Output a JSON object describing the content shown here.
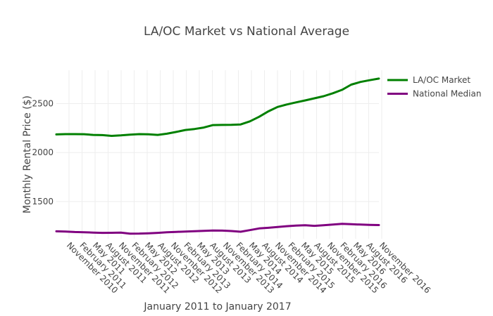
{
  "chart_data": {
    "type": "line",
    "title": "LA/OC Market vs National Average",
    "xlabel": "January 2011 to January 2017",
    "ylabel": "Monthly Rental Price ($)",
    "x_tick_labels": [
      "November 2010",
      "February 2011",
      "May 2011",
      "August 2011",
      "November 2011",
      "February 2012",
      "May 2012",
      "August 2012",
      "November 2012",
      "February 2013",
      "May 2013",
      "August 2013",
      "November 2013",
      "February 2014",
      "May 2014",
      "August 2014",
      "November 2014",
      "February 2015",
      "May 2015",
      "August 2015",
      "November 2015",
      "February 2016",
      "May 2016",
      "August 2016",
      "November 2016"
    ],
    "y_ticks": [
      1500,
      2000,
      2500
    ],
    "y_tick_labels": [
      "1500",
      "2000",
      "2500"
    ],
    "ylim": [
      1120,
      2840
    ],
    "grid": true,
    "legend_position": "top-right",
    "series": [
      {
        "name": "LA/OC Market",
        "color": "#008000",
        "values": [
          2185,
          2188,
          2188,
          2187,
          2180,
          2178,
          2170,
          2175,
          2183,
          2188,
          2186,
          2180,
          2192,
          2210,
          2230,
          2240,
          2255,
          2280,
          2282,
          2283,
          2287,
          2318,
          2365,
          2420,
          2465,
          2490,
          2512,
          2532,
          2553,
          2575,
          2605,
          2640,
          2693,
          2720,
          2738,
          2755
        ]
      },
      {
        "name": "National Median",
        "color": "#800080",
        "values": [
          1196,
          1194,
          1189,
          1187,
          1183,
          1180,
          1181,
          1183,
          1172,
          1173,
          1176,
          1180,
          1186,
          1190,
          1193,
          1197,
          1200,
          1204,
          1203,
          1199,
          1192,
          1208,
          1225,
          1232,
          1240,
          1248,
          1255,
          1258,
          1252,
          1258,
          1265,
          1272,
          1268,
          1265,
          1262,
          1260
        ]
      }
    ]
  }
}
